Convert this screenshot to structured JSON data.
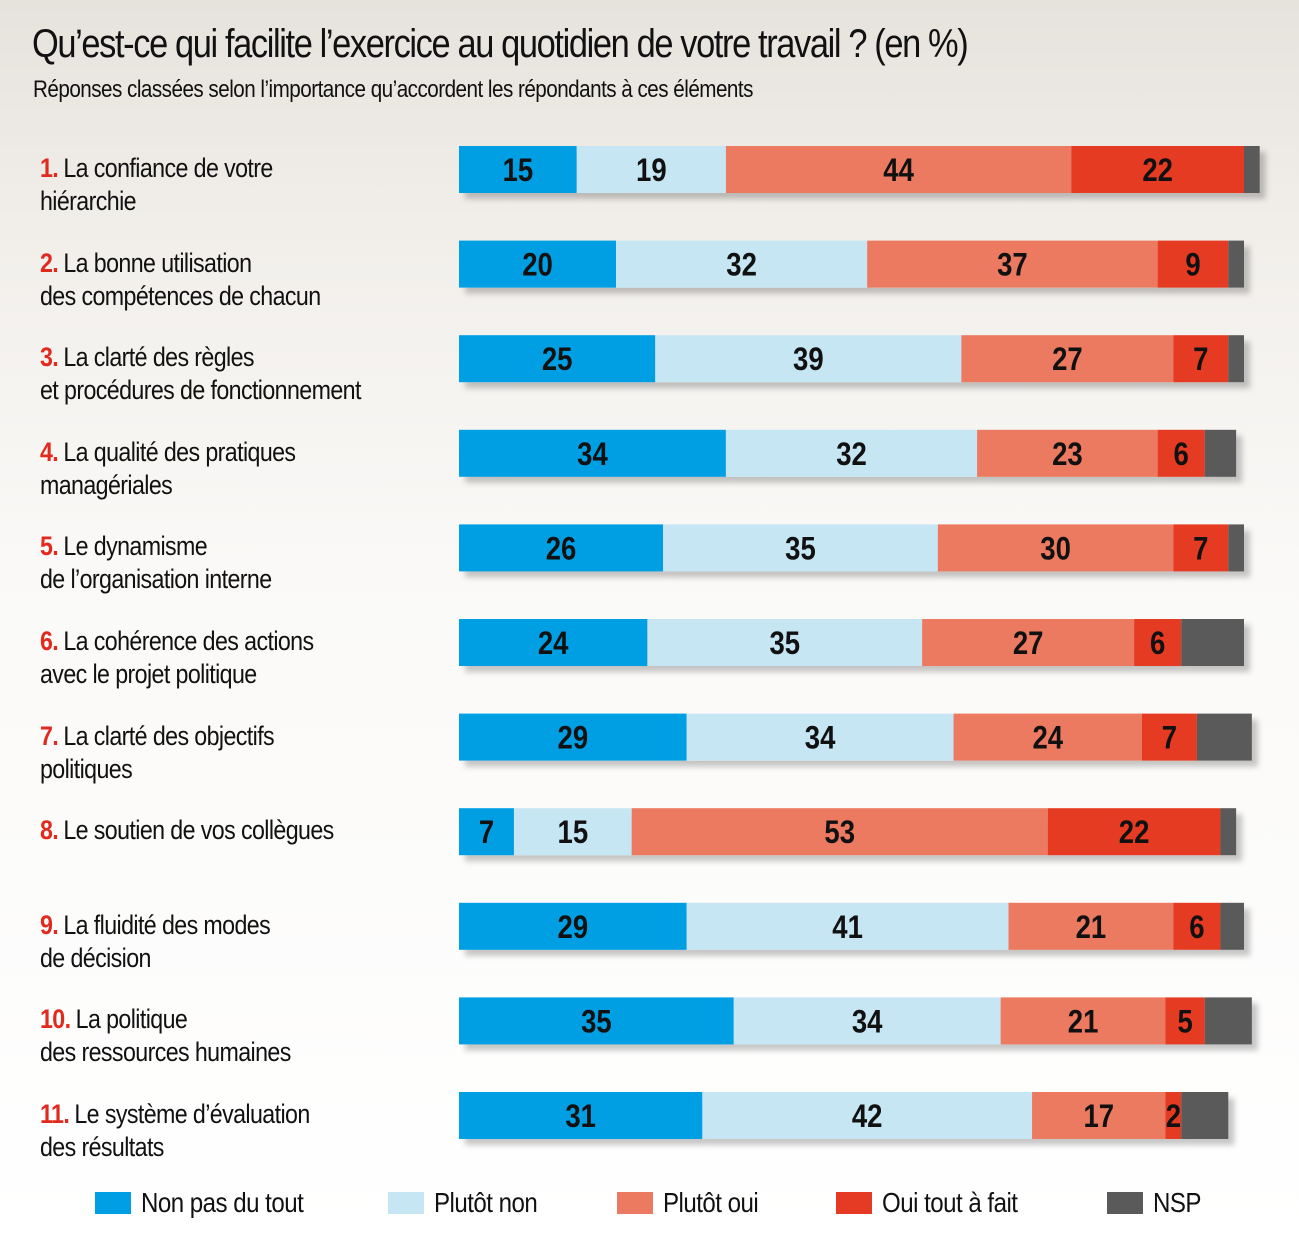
{
  "chart_data": {
    "type": "bar",
    "orientation": "horizontal",
    "stacked": true,
    "title": "Qu’est-ce qui facilite l’exercice au quotidien de votre travail ? (en %)",
    "subtitle": "Réponses classées selon l’importance qu’accordent les répondants à ces éléments",
    "legend_position": "bottom",
    "grid": false,
    "xlim": [
      0,
      100
    ],
    "categories": [
      {
        "num": "1.",
        "line1": "La confiance de votre",
        "line2": "hiérarchie"
      },
      {
        "num": "2.",
        "line1": "La bonne utilisation",
        "line2": "des compétences de chacun"
      },
      {
        "num": "3.",
        "line1": "La clarté des règles",
        "line2": "et procédures de fonctionnement"
      },
      {
        "num": "4.",
        "line1": "La qualité des pratiques",
        "line2": "managériales"
      },
      {
        "num": "5.",
        "line1": "Le dynamisme",
        "line2": "de l’organisation interne"
      },
      {
        "num": "6.",
        "line1": "La cohérence des actions",
        "line2": "avec le projet politique"
      },
      {
        "num": "7.",
        "line1": "La clarté des objectifs",
        "line2": "politiques"
      },
      {
        "num": "8.",
        "line1": "Le soutien de vos collègues",
        "line2": ""
      },
      {
        "num": "9.",
        "line1": "La fluidité des modes",
        "line2": "de décision"
      },
      {
        "num": "10.",
        "line1": "La politique",
        "line2": "des ressources humaines"
      },
      {
        "num": "11.",
        "line1": "Le système d’évaluation",
        "line2": "des résultats"
      }
    ],
    "series": [
      {
        "name": "Non pas du tout",
        "color": "#009fe3",
        "values": [
          15,
          20,
          25,
          34,
          26,
          24,
          29,
          7,
          29,
          35,
          31
        ]
      },
      {
        "name": "Plutôt non",
        "color": "#c7e6f4",
        "values": [
          19,
          32,
          39,
          32,
          35,
          35,
          34,
          15,
          41,
          34,
          42
        ]
      },
      {
        "name": "Plutôt oui",
        "color": "#ec7a60",
        "values": [
          44,
          37,
          27,
          23,
          30,
          27,
          24,
          53,
          21,
          21,
          17
        ]
      },
      {
        "name": "Oui tout à fait",
        "color": "#e53a24",
        "values": [
          22,
          9,
          7,
          6,
          7,
          6,
          7,
          22,
          6,
          5,
          2
        ]
      },
      {
        "name": "NSP",
        "color": "#5a5a5a",
        "values": [
          2,
          2,
          2,
          4,
          2,
          8,
          7,
          2,
          3,
          6,
          6
        ]
      }
    ],
    "data_labels_series": [
      "Non pas du tout",
      "Plutôt non",
      "Plutôt oui",
      "Oui tout à fait"
    ]
  }
}
